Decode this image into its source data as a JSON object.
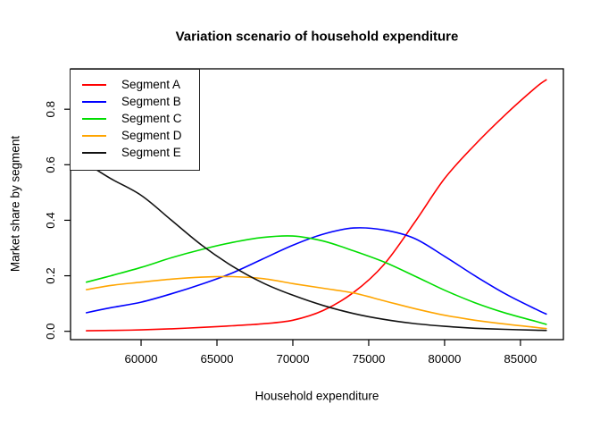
{
  "chart_data": {
    "type": "line",
    "title": "Variation scenario of household expenditure",
    "xlabel": "Household expenditure",
    "ylabel": "Market share by segment",
    "xlim": [
      55350,
      87830
    ],
    "ylim": [
      -0.03,
      0.9455
    ],
    "x_ticks": [
      60000,
      65000,
      70000,
      75000,
      80000,
      85000
    ],
    "y_ticks": [
      0.0,
      0.2,
      0.4,
      0.6,
      0.8
    ],
    "grid": false,
    "legend_position": "topleft",
    "x": [
      56400,
      58000,
      60000,
      62000,
      64000,
      66000,
      68000,
      70000,
      72000,
      74000,
      76000,
      78000,
      80000,
      82000,
      84000,
      86000,
      86700
    ],
    "series": [
      {
        "name": "Segment A",
        "color": "#ff0000",
        "values": [
          0.002,
          0.003,
          0.005,
          0.009,
          0.014,
          0.02,
          0.027,
          0.04,
          0.075,
          0.14,
          0.24,
          0.39,
          0.55,
          0.672,
          0.78,
          0.878,
          0.906
        ]
      },
      {
        "name": "Segment B",
        "color": "#0000ff",
        "values": [
          0.067,
          0.085,
          0.105,
          0.135,
          0.17,
          0.21,
          0.26,
          0.31,
          0.35,
          0.372,
          0.365,
          0.335,
          0.27,
          0.2,
          0.135,
          0.08,
          0.062
        ]
      },
      {
        "name": "Segment C",
        "color": "#00dd00",
        "values": [
          0.177,
          0.2,
          0.23,
          0.265,
          0.295,
          0.32,
          0.338,
          0.343,
          0.325,
          0.29,
          0.25,
          0.2,
          0.148,
          0.103,
          0.066,
          0.036,
          0.025
        ]
      },
      {
        "name": "Segment D",
        "color": "#ffa500",
        "values": [
          0.15,
          0.165,
          0.177,
          0.188,
          0.195,
          0.197,
          0.19,
          0.172,
          0.155,
          0.138,
          0.11,
          0.082,
          0.058,
          0.04,
          0.026,
          0.014,
          0.01
        ]
      },
      {
        "name": "Segment E",
        "color": "#111111",
        "values": [
          0.605,
          0.55,
          0.49,
          0.4,
          0.31,
          0.235,
          0.175,
          0.13,
          0.093,
          0.064,
          0.043,
          0.028,
          0.018,
          0.011,
          0.007,
          0.004,
          0.003
        ]
      }
    ]
  }
}
